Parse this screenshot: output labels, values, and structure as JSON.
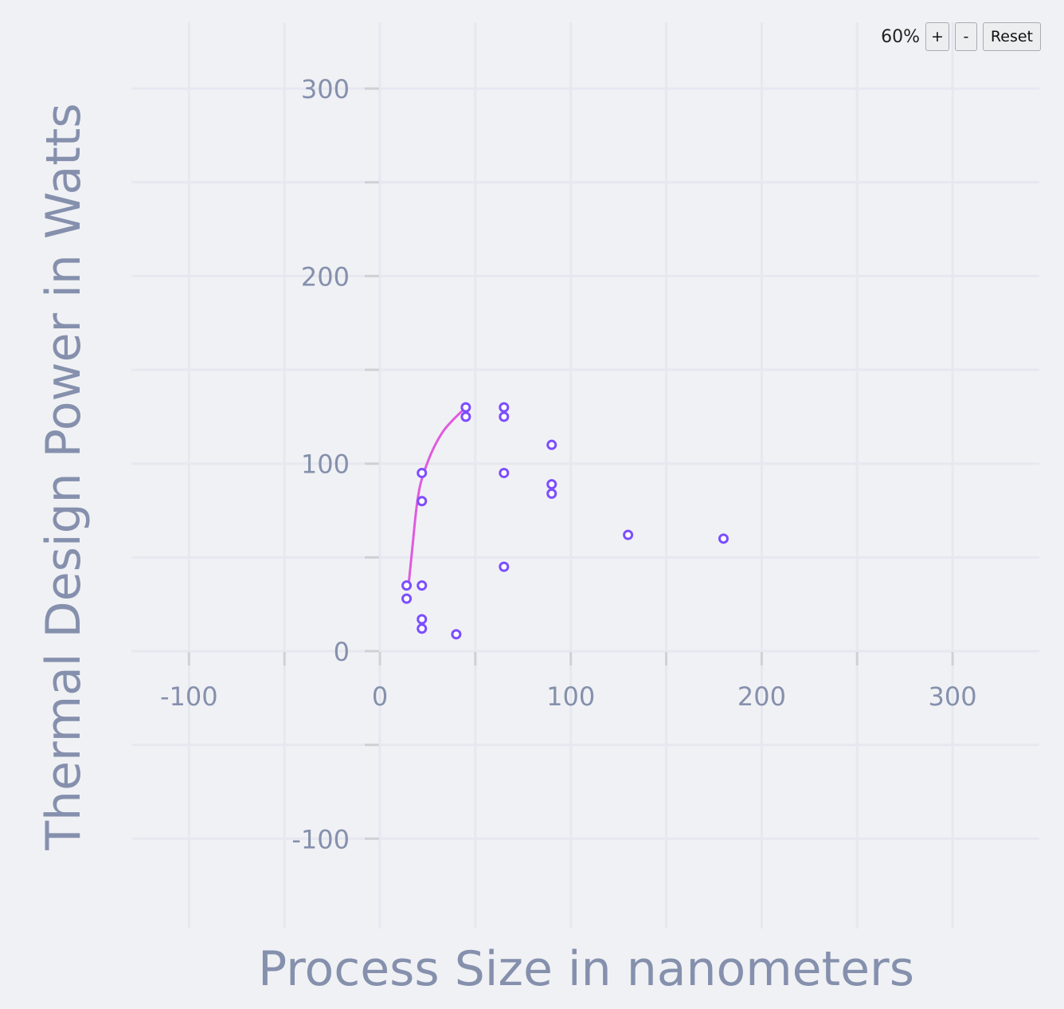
{
  "zoom": {
    "level": "60%",
    "zoom_in_label": "+",
    "zoom_out_label": "-",
    "reset_label": "Reset"
  },
  "chart_data": {
    "type": "scatter",
    "title": "",
    "xlabel": "Process Size in nanometers",
    "ylabel": "Thermal Design Power in Watts",
    "xlim": [
      -100,
      300
    ],
    "ylim": [
      -100,
      300
    ],
    "x_ticks": [
      -100,
      0,
      100,
      200,
      300
    ],
    "y_ticks": [
      -100,
      0,
      100,
      200,
      300
    ],
    "grid": true,
    "colors": {
      "points": "#7c4dff",
      "curve": "#e05adf",
      "axis_text": "#8590ad",
      "grid": "#e6e8f0",
      "tick": "#cfd1d6"
    },
    "points": [
      {
        "x": 14,
        "y": 35
      },
      {
        "x": 14,
        "y": 28
      },
      {
        "x": 22,
        "y": 95
      },
      {
        "x": 22,
        "y": 80
      },
      {
        "x": 22,
        "y": 35
      },
      {
        "x": 22,
        "y": 17
      },
      {
        "x": 22,
        "y": 12
      },
      {
        "x": 40,
        "y": 9
      },
      {
        "x": 45,
        "y": 130
      },
      {
        "x": 45,
        "y": 125
      },
      {
        "x": 65,
        "y": 130
      },
      {
        "x": 65,
        "y": 125
      },
      {
        "x": 65,
        "y": 95
      },
      {
        "x": 65,
        "y": 45
      },
      {
        "x": 90,
        "y": 110
      },
      {
        "x": 90,
        "y": 89
      },
      {
        "x": 90,
        "y": 84
      },
      {
        "x": 130,
        "y": 62
      },
      {
        "x": 180,
        "y": 60
      }
    ],
    "curve": [
      {
        "x": 15,
        "y": 35
      },
      {
        "x": 17,
        "y": 55
      },
      {
        "x": 19,
        "y": 75
      },
      {
        "x": 21,
        "y": 88
      },
      {
        "x": 24,
        "y": 98
      },
      {
        "x": 28,
        "y": 108
      },
      {
        "x": 33,
        "y": 117
      },
      {
        "x": 38,
        "y": 123
      },
      {
        "x": 44,
        "y": 129
      }
    ]
  }
}
